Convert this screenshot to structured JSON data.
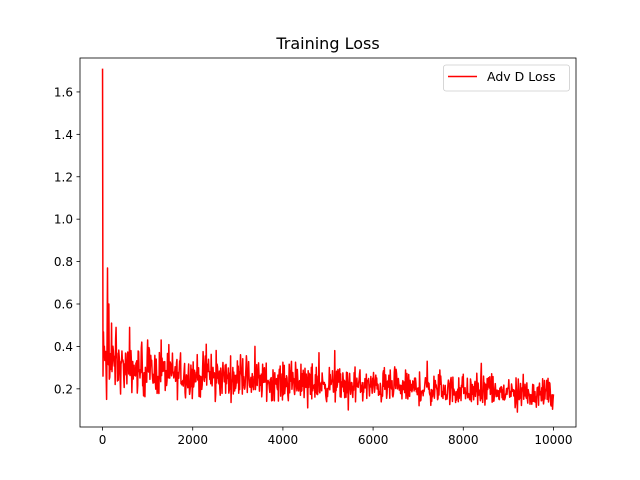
{
  "chart_data": {
    "type": "line",
    "title": "Training Loss",
    "xlabel": "",
    "ylabel": "",
    "xlim": [
      -500,
      10500
    ],
    "ylim": [
      0.02,
      1.76
    ],
    "x_ticks": [
      0,
      2000,
      4000,
      6000,
      8000,
      10000
    ],
    "y_ticks": [
      0.2,
      0.4,
      0.6,
      0.8,
      1.0,
      1.2,
      1.4,
      1.6
    ],
    "x_tick_labels": [
      "0",
      "2000",
      "4000",
      "6000",
      "8000",
      "10000"
    ],
    "y_tick_labels": [
      "0.2",
      "0.4",
      "0.6",
      "0.8",
      "1.0",
      "1.2",
      "1.4",
      "1.6"
    ],
    "grid": false,
    "legend_position": "top-right",
    "series": [
      {
        "name": "Adv D Loss",
        "color": "#ff0000",
        "x_range": [
          0,
          10000
        ],
        "sample_every": 10,
        "trend": {
          "x": [
            0,
            25,
            60,
            100,
            150,
            200,
            400,
            700,
            1000,
            2000,
            3000,
            4000,
            5000,
            6000,
            7000,
            8000,
            9000,
            10000
          ],
          "y": [
            0.45,
            0.35,
            0.36,
            0.34,
            0.33,
            0.31,
            0.3,
            0.29,
            0.28,
            0.26,
            0.25,
            0.23,
            0.22,
            0.21,
            0.2,
            0.19,
            0.18,
            0.175
          ]
        },
        "band_halfwidth": {
          "x": [
            0,
            500,
            2000,
            5000,
            10000
          ],
          "y": [
            0.12,
            0.1,
            0.09,
            0.07,
            0.06
          ]
        },
        "peaks": [
          {
            "x": 3,
            "y": 1.71
          },
          {
            "x": 8,
            "y": 0.26
          },
          {
            "x": 110,
            "y": 0.77
          },
          {
            "x": 140,
            "y": 0.6
          },
          {
            "x": 200,
            "y": 0.51
          },
          {
            "x": 300,
            "y": 0.49
          },
          {
            "x": 600,
            "y": 0.49
          },
          {
            "x": 1000,
            "y": 0.43
          },
          {
            "x": 1300,
            "y": 0.43
          },
          {
            "x": 2300,
            "y": 0.41
          },
          {
            "x": 3380,
            "y": 0.4
          },
          {
            "x": 4800,
            "y": 0.37
          },
          {
            "x": 5150,
            "y": 0.38
          },
          {
            "x": 7200,
            "y": 0.33
          },
          {
            "x": 8400,
            "y": 0.32
          },
          {
            "x": 9850,
            "y": 0.24
          }
        ],
        "troughs": [
          {
            "x": 90,
            "y": 0.15
          },
          {
            "x": 2500,
            "y": 0.14
          },
          {
            "x": 4550,
            "y": 0.11
          },
          {
            "x": 5450,
            "y": 0.1
          },
          {
            "x": 9200,
            "y": 0.09
          }
        ]
      }
    ]
  }
}
